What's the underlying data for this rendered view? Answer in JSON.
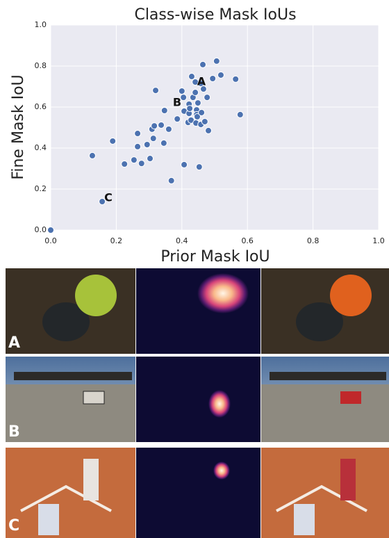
{
  "chart_data": {
    "type": "scatter",
    "title": "Class-wise Mask IoUs",
    "xlabel": "Prior Mask IoU",
    "ylabel": "Fine Mask IoU",
    "x": [
      0.127,
      0.189,
      0.157,
      0.225,
      0.254,
      0.265,
      0.265,
      0.277,
      0.294,
      0.303,
      0.309,
      0.313,
      0.316,
      0.32,
      0.337,
      0.345,
      0.347,
      0.36,
      0.368,
      0.386,
      0.4,
      0.407,
      0.405,
      0.407,
      0.419,
      0.422,
      0.422,
      0.424,
      0.428,
      0.43,
      0.434,
      0.441,
      0.441,
      0.443,
      0.445,
      0.445,
      0.447,
      0.449,
      0.453,
      0.458,
      0.458,
      0.46,
      0.464,
      0.466,
      0.47,
      0.477,
      0.481,
      0.494,
      0.506,
      0.519,
      0.564,
      0.578,
      0
    ],
    "y": [
      0.363,
      0.434,
      0.139,
      0.322,
      0.342,
      0.407,
      0.471,
      0.325,
      0.417,
      0.349,
      0.492,
      0.447,
      0.508,
      0.681,
      0.512,
      0.424,
      0.583,
      0.492,
      0.241,
      0.542,
      0.678,
      0.319,
      0.647,
      0.58,
      0.525,
      0.614,
      0.569,
      0.593,
      0.536,
      0.749,
      0.647,
      0.722,
      0.671,
      0.522,
      0.586,
      0.563,
      0.553,
      0.62,
      0.308,
      0.515,
      0.715,
      0.573,
      0.807,
      0.688,
      0.529,
      0.647,
      0.485,
      0.739,
      0.824,
      0.756,
      0.736,
      0.563,
      0
    ],
    "color": "#4c72b0",
    "annotations": [
      "A",
      "B",
      "C"
    ],
    "xlim": [
      0,
      1
    ],
    "ylim": [
      0,
      1
    ],
    "xticks": [
      {
        "value": 0,
        "label": "0.0"
      },
      0.2,
      0.4,
      0.6,
      0.8,
      {
        "value": 1,
        "label": "1.0"
      }
    ],
    "yticks": [
      {
        "value": 0,
        "label": "0.0"
      },
      0.2,
      0.4,
      0.6,
      0.8,
      {
        "value": 1,
        "label": "1.0"
      }
    ],
    "grid": true
  },
  "panels": [
    {
      "label": "A"
    },
    {
      "label": "B"
    },
    {
      "label": "C"
    }
  ]
}
